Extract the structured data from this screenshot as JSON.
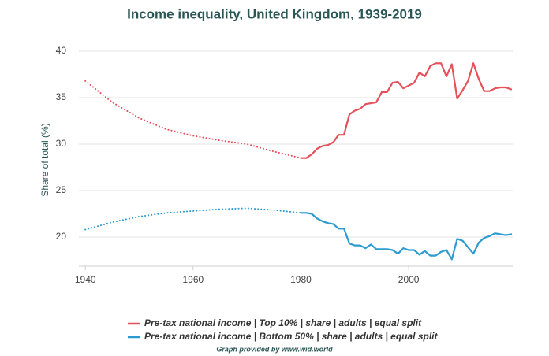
{
  "chart_data": {
    "type": "line",
    "title": "Income inequality, United Kingdom, 1939-2019",
    "y_label": "Share of total (%)",
    "credit": "Graph provided by www.wid.world",
    "x": [
      1940,
      1945,
      1950,
      1955,
      1960,
      1965,
      1970,
      1975,
      1980,
      1981,
      1982,
      1983,
      1984,
      1985,
      1986,
      1987,
      1988,
      1989,
      1990,
      1991,
      1992,
      1993,
      1994,
      1995,
      1996,
      1997,
      1998,
      1999,
      2000,
      2001,
      2002,
      2003,
      2004,
      2005,
      2006,
      2007,
      2008,
      2009,
      2010,
      2011,
      2012,
      2013,
      2014,
      2015,
      2016,
      2017,
      2018,
      2019
    ],
    "series": [
      {
        "name": "Pre-tax national income | Top 10% | share | adults | equal split",
        "color": "#e5505a",
        "values": [
          36.8,
          34.5,
          32.8,
          31.6,
          30.9,
          30.4,
          30.0,
          29.2,
          28.5,
          28.5,
          28.9,
          29.5,
          29.8,
          29.9,
          30.2,
          31.0,
          31.0,
          33.2,
          33.6,
          33.8,
          34.3,
          34.4,
          34.5,
          35.6,
          35.6,
          36.6,
          36.7,
          36.0,
          36.3,
          36.6,
          37.7,
          37.3,
          38.4,
          38.7,
          38.7,
          37.3,
          38.6,
          34.9,
          35.8,
          36.8,
          38.7,
          37.0,
          35.7,
          35.7,
          36.0,
          36.1,
          36.1,
          35.9
        ]
      },
      {
        "name": "Pre-tax national income | Bottom 50% | share | adults | equal split",
        "color": "#2b9bd1",
        "values": [
          20.8,
          21.6,
          22.2,
          22.6,
          22.8,
          23.0,
          23.1,
          22.9,
          22.6,
          22.6,
          22.5,
          22.0,
          21.7,
          21.5,
          21.4,
          20.9,
          20.9,
          19.3,
          19.1,
          19.1,
          18.8,
          19.2,
          18.7,
          18.7,
          18.7,
          18.6,
          18.2,
          18.8,
          18.6,
          18.6,
          18.1,
          18.5,
          18.0,
          18.0,
          18.4,
          18.6,
          17.6,
          19.8,
          19.6,
          18.9,
          18.2,
          19.4,
          19.9,
          20.1,
          20.4,
          20.3,
          20.2,
          20.3
        ]
      }
    ],
    "dotted_x_range": [
      1940,
      1980
    ],
    "xlim": [
      1938.8,
      2019.3
    ],
    "xticks": [
      1940,
      1960,
      1980,
      2000
    ],
    "ylim": [
      16.86,
      40
    ],
    "yticks": [
      20,
      25,
      30,
      35,
      40
    ],
    "grid": true,
    "legend_position": "bottom"
  }
}
